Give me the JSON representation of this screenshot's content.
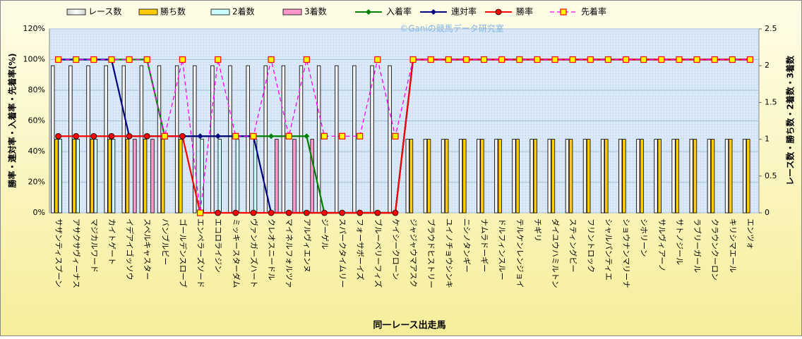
{
  "chart_data": {
    "type": "combo",
    "watermark": "©Ganiの競馬データ研究室",
    "x_label": "同一レース出走馬",
    "y_label": "勝率・連対率・入着率・先着率(%)",
    "y2_label": "レース数・勝ち数・2着数・3着数",
    "categories": [
      "サザンティスプーン",
      "アサクサヴィーナス",
      "マジカルワード",
      "カイトゲート",
      "イデアイゴッソウ",
      "スペルキャスター",
      "バンブルビー",
      "ゴールデンスローブ",
      "エンペラーズソード",
      "エコロライジン",
      "ミッキースターダム",
      "ヴァンガーズハート",
      "クレオスニードル",
      "マイネルフォルツァ",
      "アルヴィエンヌ",
      "ジーゲル",
      "スパークタイムリー",
      "フォーサボーイズ",
      "ブルーベリーフィズ",
      "ケイシークローン",
      "ジャジャウマアスク",
      "ブラウドヒストリー",
      "ユイノチョウシンキ",
      "ニシノタンギー",
      "ナムラドーギー",
      "ドルフィンスルー",
      "テルケンレンジョイ",
      "チギリ",
      "ダイユウハミルトン",
      "スティングビー",
      "フリントロック",
      "シャルパンティエ",
      "ショウナンマリーナ",
      "シホリーン",
      "サルヴィアーノ",
      "サトノジール",
      "ラブリーガール",
      "クラウンクーロン",
      "キリシマエール",
      "エンツォ"
    ],
    "ylim": [
      0,
      120
    ],
    "yticks": [
      {
        "value": 0,
        "label": "0%"
      },
      {
        "value": 20,
        "label": "20%"
      },
      {
        "value": 40,
        "label": "40%"
      },
      {
        "value": 60,
        "label": "60%"
      },
      {
        "value": 80,
        "label": "80%"
      },
      {
        "value": 100,
        "label": "100%"
      },
      {
        "value": 120,
        "label": "120%"
      }
    ],
    "y2lim": [
      0,
      2.5
    ],
    "y2ticks": [
      0,
      0.5,
      1,
      1.5,
      2,
      2.5
    ],
    "grid": true,
    "series": [
      {
        "name": "レース数",
        "type": "bar",
        "axis": "y2",
        "color": "#ffffff",
        "values": [
          2,
          2,
          2,
          2,
          2,
          2,
          2,
          2,
          2,
          2,
          2,
          2,
          2,
          2,
          2,
          2,
          2,
          2,
          2,
          2,
          1,
          1,
          1,
          1,
          1,
          1,
          1,
          1,
          1,
          1,
          1,
          1,
          1,
          1,
          1,
          1,
          1,
          1,
          1,
          1
        ]
      },
      {
        "name": "勝ち数",
        "type": "bar",
        "axis": "y2",
        "color": "#ffcc00",
        "values": [
          1,
          1,
          1,
          1,
          1,
          1,
          1,
          1,
          0,
          0,
          0,
          0,
          0,
          0,
          0,
          0,
          0,
          0,
          0,
          0,
          1,
          1,
          1,
          1,
          1,
          1,
          1,
          1,
          1,
          1,
          1,
          1,
          1,
          1,
          1,
          1,
          1,
          1,
          1,
          1
        ]
      },
      {
        "name": "2着数",
        "type": "bar",
        "axis": "y2",
        "color": "#ccffff",
        "values": [
          1,
          1,
          1,
          1,
          0,
          0,
          0,
          0,
          1,
          1,
          1,
          1,
          0,
          0,
          0,
          0,
          0,
          0,
          0,
          0,
          0,
          0,
          0,
          0,
          0,
          0,
          0,
          0,
          0,
          0,
          0,
          0,
          0,
          0,
          0,
          0,
          0,
          0,
          0,
          0
        ]
      },
      {
        "name": "3着数",
        "type": "bar",
        "axis": "y2",
        "color": "#ff99cc",
        "values": [
          0,
          0,
          0,
          0,
          1,
          1,
          0,
          0,
          0,
          0,
          0,
          0,
          1,
          1,
          1,
          0,
          0,
          0,
          0,
          0,
          0,
          0,
          0,
          0,
          0,
          0,
          0,
          0,
          0,
          0,
          0,
          0,
          0,
          0,
          0,
          0,
          0,
          0,
          0,
          0
        ]
      },
      {
        "name": "入着率",
        "type": "line",
        "color": "#008000",
        "values": [
          100,
          100,
          100,
          100,
          100,
          100,
          50,
          50,
          50,
          50,
          50,
          50,
          50,
          50,
          50,
          0,
          0,
          0,
          0,
          0,
          100,
          100,
          100,
          100,
          100,
          100,
          100,
          100,
          100,
          100,
          100,
          100,
          100,
          100,
          100,
          100,
          100,
          100,
          100,
          100
        ]
      },
      {
        "name": "連対率",
        "type": "line",
        "color": "#000080",
        "values": [
          100,
          100,
          100,
          100,
          50,
          50,
          50,
          50,
          50,
          50,
          50,
          50,
          0,
          0,
          0,
          0,
          0,
          0,
          0,
          0,
          100,
          100,
          100,
          100,
          100,
          100,
          100,
          100,
          100,
          100,
          100,
          100,
          100,
          100,
          100,
          100,
          100,
          100,
          100,
          100
        ]
      },
      {
        "name": "勝率",
        "type": "line",
        "color": "#ff0000",
        "values": [
          50,
          50,
          50,
          50,
          50,
          50,
          50,
          50,
          0,
          0,
          0,
          0,
          0,
          0,
          0,
          0,
          0,
          0,
          0,
          0,
          100,
          100,
          100,
          100,
          100,
          100,
          100,
          100,
          100,
          100,
          100,
          100,
          100,
          100,
          100,
          100,
          100,
          100,
          100,
          100
        ]
      },
      {
        "name": "先着率",
        "type": "line",
        "color": "#ff00ff",
        "dashed": true,
        "values": [
          100,
          100,
          100,
          100,
          100,
          100,
          50,
          100,
          0,
          100,
          50,
          50,
          100,
          50,
          100,
          50,
          50,
          50,
          100,
          50,
          100,
          100,
          100,
          100,
          100,
          100,
          100,
          100,
          100,
          100,
          100,
          100,
          100,
          100,
          100,
          100,
          100,
          100,
          100,
          100
        ]
      }
    ]
  }
}
